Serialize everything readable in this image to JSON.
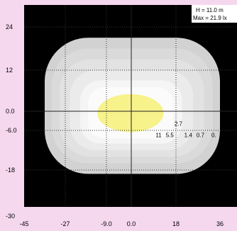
{
  "info": {
    "height_label": "H = 11.0 m",
    "max_label": "Max = 21.9 lx"
  },
  "chart_data": {
    "type": "heatmap",
    "subtype": "isolux contour plot",
    "xlim": [
      -45,
      36
    ],
    "ylim": [
      -30,
      30
    ],
    "x_ticks": [
      "-45",
      "-27",
      "-9.0",
      "0.0",
      "18",
      "36"
    ],
    "y_ticks": [
      "24",
      "12",
      "0.0",
      "-6.0",
      "-18",
      "-30"
    ],
    "grid": "dotted",
    "crosshair": {
      "x": 0,
      "y": 0
    },
    "contours": [
      {
        "level": "0.",
        "color": "#d2d2d2",
        "half_width": 36,
        "top": 21,
        "bottom": -19
      },
      {
        "level": "0.7",
        "color": "#dadada",
        "half_width": 33,
        "top": 18,
        "bottom": -16
      },
      {
        "level": "1.4",
        "color": "#e2e2e2",
        "half_width": 29.5,
        "top": 15,
        "bottom": -14
      },
      {
        "level": "2.7",
        "color": "#ebebeb",
        "half_width": 25,
        "top": 12,
        "bottom": -12
      },
      {
        "level": "5.5",
        "color": "#f5f5f5",
        "half_width": 20.5,
        "top": 9,
        "bottom": -10
      },
      {
        "level": "11",
        "color": "#fbfbfb",
        "half_width": 17,
        "top": 7,
        "bottom": -8.5
      },
      {
        "level": "",
        "color": "#f7f28a",
        "half_width": 13,
        "top": 5,
        "bottom": -6.5
      }
    ],
    "labels": [
      {
        "text": "2.7",
        "x": 19,
        "y": -4.5
      },
      {
        "text": "11",
        "x": 11,
        "y": -8
      },
      {
        "text": "5.5",
        "x": 15.5,
        "y": -8
      },
      {
        "text": "1.4",
        "x": 23,
        "y": -8
      },
      {
        "text": "0.7",
        "x": 28,
        "y": -8
      },
      {
        "text": "0.",
        "x": 33.5,
        "y": -8
      }
    ]
  }
}
